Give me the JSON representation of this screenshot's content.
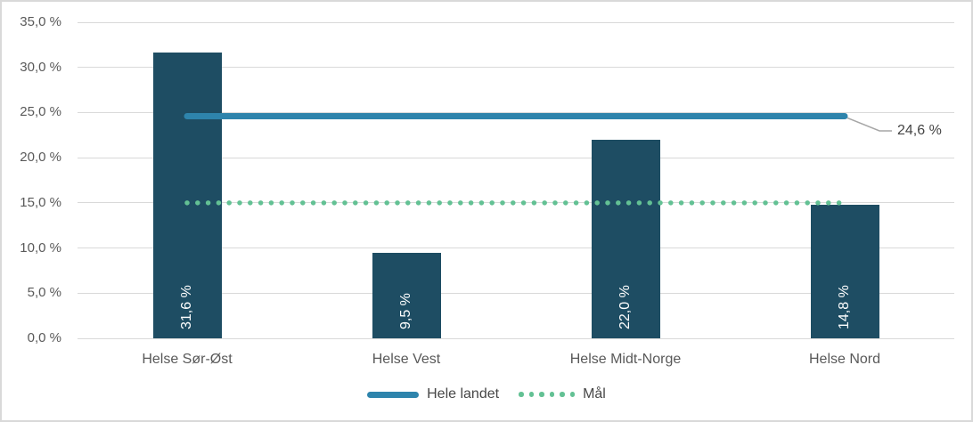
{
  "chart_data": {
    "type": "bar",
    "title": "",
    "categories": [
      "Helse Sør-Øst",
      "Helse Vest",
      "Helse Midt-Norge",
      "Helse Nord"
    ],
    "values": [
      31.6,
      9.5,
      22.0,
      14.8
    ],
    "bar_value_labels": [
      "31,6 %",
      "9,5 %",
      "22,0 %",
      "14,8 %"
    ],
    "reference_lines": [
      {
        "name": "Hele landet",
        "value": 24.6,
        "style": "solid",
        "annotation": "24,6 %"
      },
      {
        "name": "Mål",
        "value": 15.0,
        "style": "dotted",
        "annotation": ""
      }
    ],
    "ylim": [
      0,
      35
    ],
    "ytick_step": 5,
    "ytick_labels": [
      "0,0 %",
      "5,0 %",
      "10,0 %",
      "15,0 %",
      "20,0 %",
      "25,0 %",
      "30,0 %",
      "35,0 %"
    ],
    "xlabel": "",
    "ylabel": "",
    "grid": true,
    "legend_position": "bottom",
    "legend": [
      "Hele landet",
      "Mål"
    ]
  },
  "colors": {
    "bar": "#1e4d63",
    "hele_landet_line": "#2e84ac",
    "maal_line": "#63c194",
    "gridline": "#d9d9d9",
    "axis_text": "#595959",
    "bar_label_text": "#ffffff",
    "legend_text": "#474747",
    "annotation_text": "#444444",
    "connector": "#a6a6a6",
    "background": "#ffffff",
    "border": "#d9d9d9"
  }
}
